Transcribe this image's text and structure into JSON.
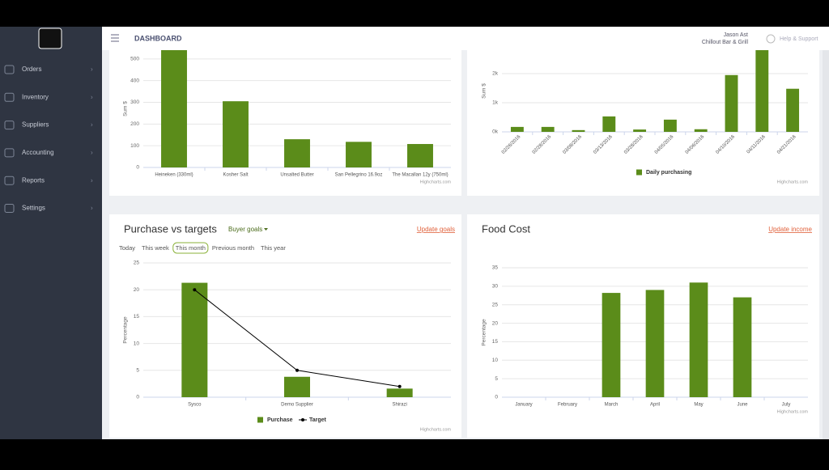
{
  "header": {
    "title": "DASHBOARD",
    "user": "Jason Ast",
    "venue": "Chillout Bar & Grill",
    "help": "Help & Support"
  },
  "sidebar": {
    "items": [
      "Orders",
      "Inventory",
      "Suppliers",
      "Accounting",
      "Reports",
      "Settings"
    ]
  },
  "panels": {
    "purchase": {
      "title": "Purchase vs targets",
      "dropdown": "Buyer goals",
      "action": "Update goals",
      "tabs": [
        "Today",
        "This week",
        "This month",
        "Previous month",
        "This year"
      ]
    },
    "food": {
      "title": "Food Cost",
      "action": "Update income"
    }
  },
  "chart_data": [
    {
      "type": "bar",
      "y_label": "Sum $",
      "credit": "Highcharts.com",
      "categories": [
        "Heineken (330ml)",
        "Kosher Salt",
        "Unsalted Butter",
        "San Pellegrino 16.9oz",
        "The Macallan 12y (750ml)"
      ],
      "values": [
        560,
        305,
        130,
        118,
        108
      ],
      "color": "#5b8c1a",
      "ylim": [
        0,
        600
      ],
      "yticks": [
        0,
        100,
        200,
        300,
        400,
        500
      ],
      "grid": true
    },
    {
      "type": "bar",
      "y_label": "Sum $",
      "credit": "Highcharts.com",
      "categories": [
        "02/26/2016",
        "02/28/2016",
        "03/08/2016",
        "03/13/2016",
        "03/28/2016",
        "04/05/2016",
        "04/06/2016",
        "04/10/2016",
        "04/11/2016",
        "04/21/2016"
      ],
      "series": [
        {
          "name": "Daily purchasing",
          "color": "#5b8c1a",
          "values": [
            170,
            170,
            60,
            530,
            80,
            420,
            90,
            1950,
            2900,
            1480
          ]
        }
      ],
      "ylim": [
        0,
        3000
      ],
      "yticks": [
        {
          "value": 0,
          "label": "0k"
        },
        {
          "value": 1000,
          "label": "1k"
        },
        {
          "value": 2000,
          "label": "2k"
        }
      ],
      "grid": true
    },
    {
      "type": "bar",
      "y_label": "Percentage",
      "credit": "Highcharts.com",
      "categories": [
        "Sysco",
        "Demo Supplier",
        "Shirazi"
      ],
      "series": [
        {
          "name": "Purchase",
          "color": "#5b8c1a",
          "values": [
            21.3,
            3.8,
            1.6
          ]
        },
        {
          "name": "Target",
          "type": "line",
          "color": "#000000",
          "values": [
            20,
            5,
            2
          ]
        }
      ],
      "ylim": [
        0,
        25
      ],
      "yticks": [
        0,
        5,
        10,
        15,
        20,
        25
      ],
      "grid": true
    },
    {
      "type": "bar",
      "y_label": "Percentage",
      "credit": "Highcharts.com",
      "categories": [
        "January",
        "February",
        "March",
        "April",
        "May",
        "June",
        "July"
      ],
      "values": [
        null,
        null,
        28.2,
        29,
        31,
        27,
        null
      ],
      "color": "#5b8c1a",
      "ylim": [
        0,
        35
      ],
      "yticks": [
        0,
        5,
        10,
        15,
        20,
        25,
        30,
        35
      ],
      "grid": true
    }
  ]
}
